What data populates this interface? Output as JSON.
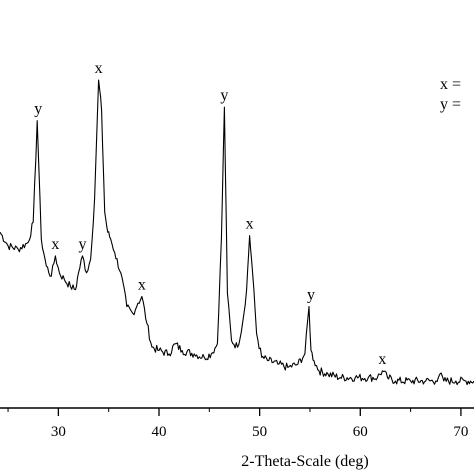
{
  "chart_data": {
    "type": "line",
    "title": "",
    "xlabel": "2-Theta-Scale (deg)",
    "ylabel": "",
    "xlim": [
      24.2,
      71.3
    ],
    "ylim": [
      0,
      100
    ],
    "x_ticks": [
      30,
      40,
      50,
      60,
      70
    ],
    "x_tick_labels": [
      "30",
      "40",
      "50",
      "60",
      "70"
    ],
    "grid": false,
    "legend_position": "top-right",
    "legend": [
      {
        "marker": "x",
        "text": "x ="
      },
      {
        "marker": "y",
        "text": "y ="
      }
    ],
    "series": [
      {
        "color": "#000000",
        "x": [
          24.2,
          25.0,
          26.0,
          27.0,
          27.5,
          27.9,
          28.3,
          28.8,
          29.3,
          29.7,
          30.1,
          30.6,
          31.2,
          31.7,
          32.0,
          32.4,
          32.8,
          33.2,
          33.6,
          34.0,
          34.3,
          34.6,
          34.9,
          35.2,
          35.6,
          36.2,
          36.8,
          37.4,
          37.9,
          38.3,
          38.8,
          39.3,
          40.0,
          41.0,
          41.6,
          42.3,
          43.5,
          44.5,
          45.2,
          45.8,
          46.2,
          46.5,
          46.8,
          47.2,
          47.8,
          48.3,
          48.7,
          49.0,
          49.3,
          49.7,
          50.2,
          50.9,
          51.8,
          52.8,
          53.8,
          54.5,
          54.9,
          55.1,
          55.4,
          55.9,
          56.8,
          58.0,
          59.5,
          60.8,
          61.7,
          62.2,
          62.7,
          63.5,
          65.0,
          66.5,
          67.5,
          67.9,
          68.3,
          69.5,
          70.5,
          71.3
        ],
        "values": [
          52,
          48,
          47,
          49,
          55,
          85,
          50,
          42,
          39,
          45,
          40,
          38,
          36,
          35,
          40,
          45,
          40,
          44,
          62,
          97,
          88,
          58,
          52,
          50,
          46,
          40,
          30,
          28,
          31,
          33,
          25,
          18,
          17,
          16,
          19,
          17,
          16,
          15,
          16,
          19,
          50,
          89,
          34,
          20,
          18,
          25,
          35,
          51,
          40,
          22,
          15,
          14,
          13,
          12,
          13,
          16,
          30,
          17,
          14,
          11,
          10,
          9,
          9,
          9,
          9,
          11,
          9,
          8,
          8,
          8,
          8,
          10,
          8,
          8,
          8,
          8
        ]
      }
    ],
    "annotations": [
      {
        "text": "y",
        "x": 28.0,
        "y": 85
      },
      {
        "text": "x",
        "x": 29.7,
        "y": 45
      },
      {
        "text": "y",
        "x": 32.4,
        "y": 45
      },
      {
        "text": "x",
        "x": 34.0,
        "y": 97
      },
      {
        "text": "x",
        "x": 38.3,
        "y": 33
      },
      {
        "text": "y",
        "x": 46.5,
        "y": 89
      },
      {
        "text": "x",
        "x": 49.0,
        "y": 51
      },
      {
        "text": "y",
        "x": 55.1,
        "y": 30
      },
      {
        "text": "x",
        "x": 62.2,
        "y": 11
      }
    ]
  }
}
